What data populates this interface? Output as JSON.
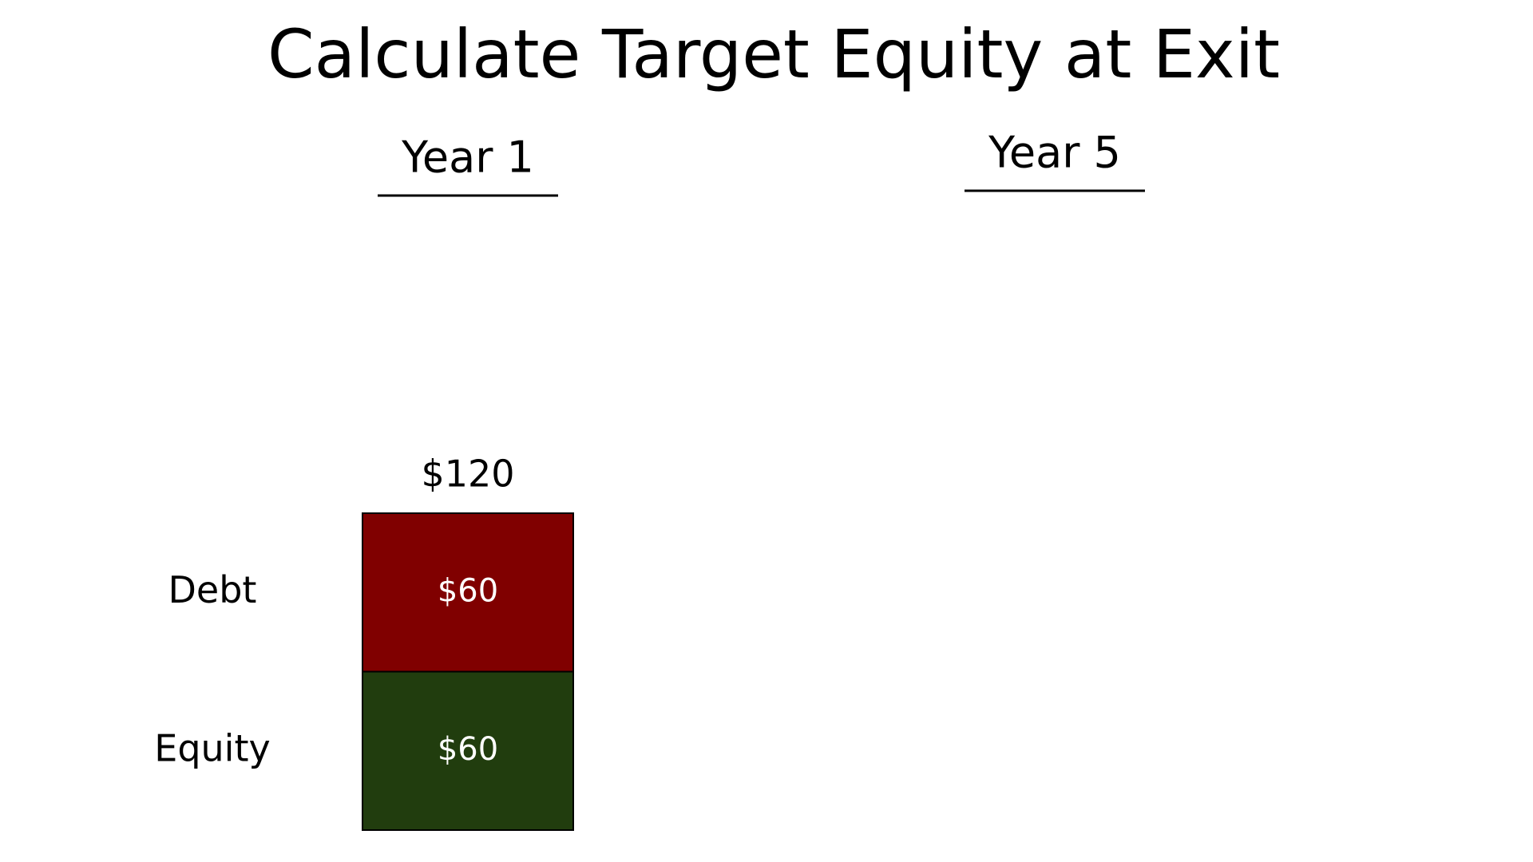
{
  "chart_data": {
    "type": "stacked-bar",
    "title": "Calculate Target Equity at Exit",
    "categories": [
      "Year 1",
      "Year 5"
    ],
    "series": [
      {
        "name": "Equity",
        "color": "#213d0e",
        "values": [
          60,
          null
        ],
        "value_labels": [
          "$60",
          null
        ]
      },
      {
        "name": "Debt",
        "color": "#800000",
        "values": [
          60,
          null
        ],
        "value_labels": [
          "$60",
          null
        ]
      }
    ],
    "totals": [
      120,
      null
    ],
    "total_labels": [
      "$120",
      null
    ]
  }
}
